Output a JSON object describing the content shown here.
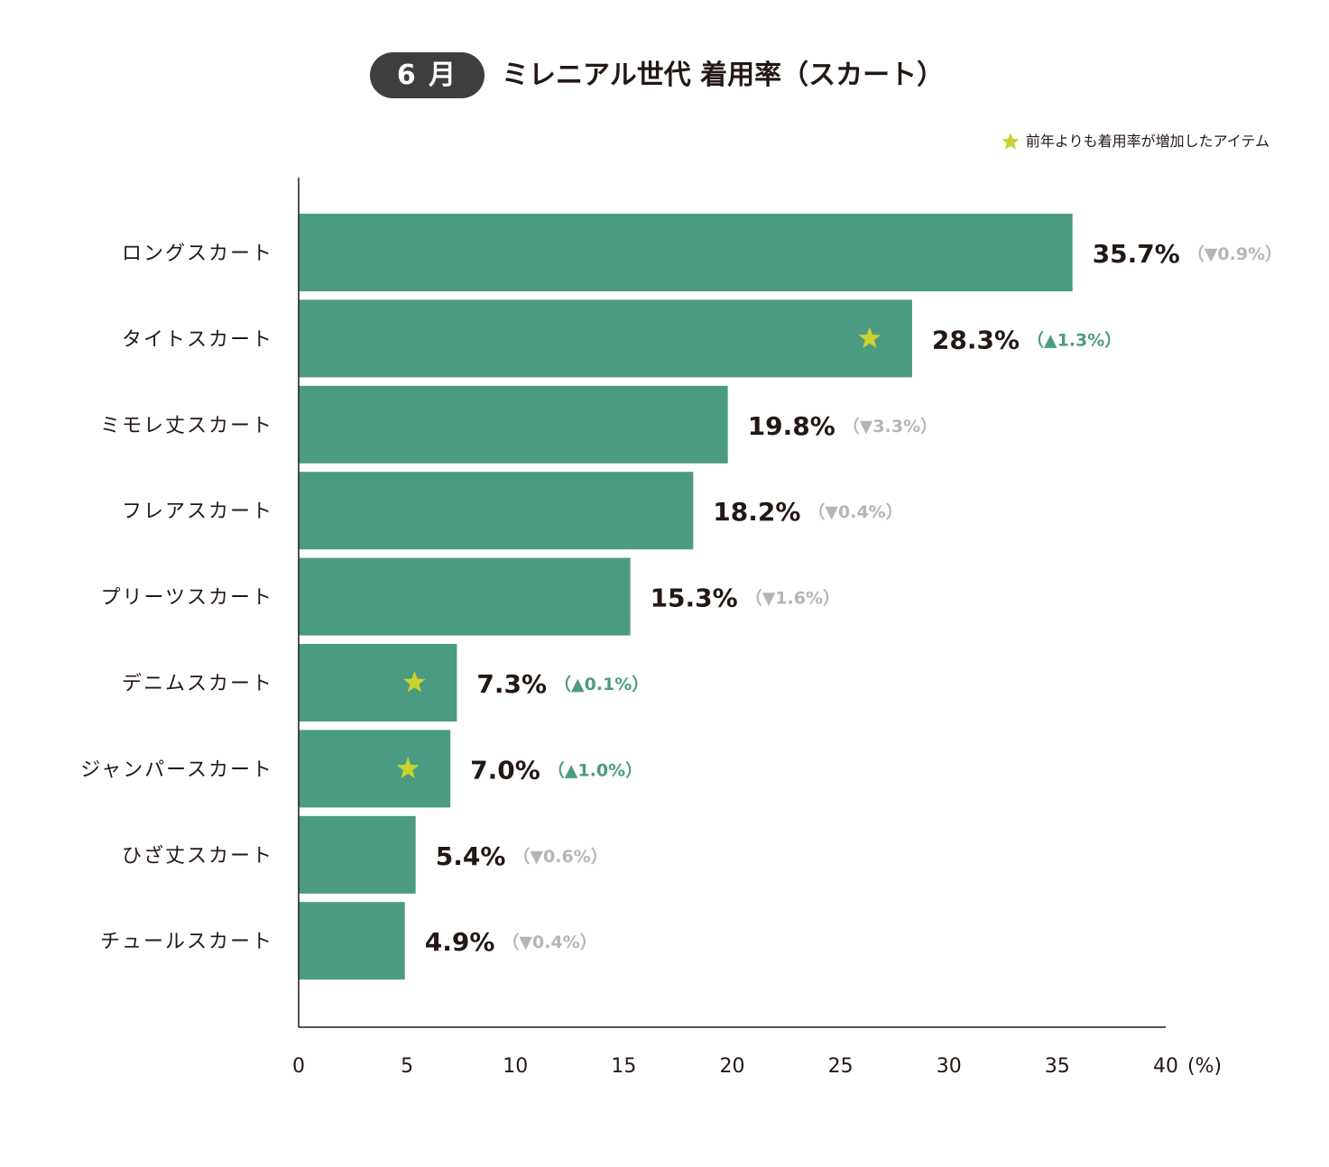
{
  "header": {
    "month": "6 月",
    "title": "ミレニアル世代 着用率（スカート）"
  },
  "legend": {
    "icon": "star-icon",
    "label": "前年よりも着用率が増加したアイテム"
  },
  "colors": {
    "bar": "#4b9b82",
    "star": "#c9d22f",
    "increase": "#4b9b82",
    "decrease": "#b5b5b6",
    "text": "#231815",
    "pill": "#3f3e3c",
    "axis": "#231815"
  },
  "chart_data": {
    "type": "bar",
    "orientation": "horizontal",
    "title": "ミレニアル世代 着用率（スカート）",
    "xlim": [
      0,
      40
    ],
    "xticks": [
      "0",
      "5",
      "10",
      "15",
      "20",
      "25",
      "30",
      "35",
      "40"
    ],
    "unit_label": "(%)",
    "categories": [
      "ロングスカート",
      "タイトスカート",
      "ミモレ丈スカート",
      "フレアスカート",
      "プリーツスカート",
      "デニムスカート",
      "ジャンパースカート",
      "ひざ丈スカート",
      "チュールスカート"
    ],
    "values": [
      35.7,
      28.3,
      19.8,
      18.2,
      15.3,
      7.3,
      7.0,
      5.4,
      4.9
    ],
    "value_labels": [
      "35.7%",
      "28.3%",
      "19.8%",
      "18.2%",
      "15.3%",
      "7.3%",
      "7.0%",
      "5.4%",
      "4.9%"
    ],
    "changes": [
      {
        "direction": "down",
        "label": "（▼0.9%）"
      },
      {
        "direction": "up",
        "label": "（▲1.3%）"
      },
      {
        "direction": "down",
        "label": "（▼3.3%）"
      },
      {
        "direction": "down",
        "label": "（▼0.4%）"
      },
      {
        "direction": "down",
        "label": "（▼1.6%）"
      },
      {
        "direction": "up",
        "label": "（▲0.1%）"
      },
      {
        "direction": "up",
        "label": "（▲1.0%）"
      },
      {
        "direction": "down",
        "label": "（▼0.6%）"
      },
      {
        "direction": "down",
        "label": "（▼0.4%）"
      }
    ],
    "starred": [
      false,
      true,
      false,
      false,
      false,
      true,
      true,
      false,
      false
    ]
  }
}
